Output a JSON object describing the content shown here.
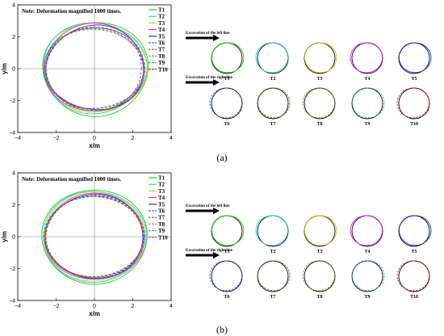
{
  "panels": [
    {
      "caption": "(a)",
      "left_chart": {
        "note": "Note: Deformation magnified 1000 times.",
        "xlabel": "x/m",
        "ylabel": "y/m",
        "xticks": [
          "−4",
          "−2",
          "0",
          "2",
          "4"
        ],
        "yticks": [
          "4",
          "2",
          "0",
          "−2",
          "−4"
        ]
      },
      "right": {
        "left_line_label": "Excavation of the left line",
        "right_line_label": "Excavation of the right line"
      }
    },
    {
      "caption": "(b)",
      "left_chart": {
        "note": "Note: Deformation magnified 1000 times.",
        "xlabel": "x/m",
        "ylabel": "y/m",
        "xticks": [
          "−4",
          "−2",
          "0",
          "2",
          "4"
        ],
        "yticks": [
          "4",
          "2",
          "0",
          "−2",
          "−4"
        ]
      },
      "right": {
        "left_line_label": "Excavation of the left line",
        "right_line_label": "Excavation of the right line"
      }
    }
  ],
  "chart_data": [
    {
      "type": "line",
      "xlabel": "x/m",
      "ylabel": "y/m",
      "xlim": [
        -4,
        4
      ],
      "ylim": [
        -4,
        4
      ],
      "note": "Note: Deformation magnified 1000 times.",
      "legend_position": "top-right",
      "series": [
        {
          "name": "T1",
          "color": "#22cc22",
          "dash": "solid",
          "rx": 2.75,
          "ry": 2.95,
          "cx": 0.05,
          "cy": 0.0
        },
        {
          "name": "T2",
          "color": "#33cccc",
          "dash": "solid",
          "rx": 2.7,
          "ry": 2.85,
          "cx": 0.0,
          "cy": 0.05
        },
        {
          "name": "T3",
          "color": "#cccc22",
          "dash": "solid",
          "rx": 2.65,
          "ry": 2.8,
          "cx": 0.05,
          "cy": 0.05
        },
        {
          "name": "T4",
          "color": "#cc33cc",
          "dash": "solid",
          "rx": 2.6,
          "ry": 2.75,
          "cx": 0.0,
          "cy": 0.05
        },
        {
          "name": "T5",
          "color": "#2233cc",
          "dash": "solid",
          "rx": 2.55,
          "ry": 2.65,
          "cx": 0.05,
          "cy": 0.05
        },
        {
          "name": "T6",
          "color": "#3355cc",
          "dash": "dashed",
          "rx": 2.55,
          "ry": 2.6,
          "cx": -0.05,
          "cy": 0.0
        },
        {
          "name": "T7",
          "color": "#556633",
          "dash": "dashed",
          "rx": 2.6,
          "ry": 2.6,
          "cx": 0.0,
          "cy": 0.0
        },
        {
          "name": "T8",
          "color": "#888833",
          "dash": "dashed",
          "rx": 2.55,
          "ry": 2.55,
          "cx": 0.0,
          "cy": -0.05
        },
        {
          "name": "T9",
          "color": "#3399dd",
          "dash": "dashed",
          "rx": 2.6,
          "ry": 2.5,
          "cx": 0.0,
          "cy": 0.0
        },
        {
          "name": "T10",
          "color": "#dd2222",
          "dash": "dashed",
          "rx": 2.55,
          "ry": 2.55,
          "cx": 0.0,
          "cy": 0.0
        }
      ]
    },
    {
      "type": "line",
      "xlabel": "x/m",
      "ylabel": "y/m",
      "xlim": [
        -4,
        4
      ],
      "ylim": [
        -4,
        4
      ],
      "note": "Note: Deformation magnified 1000 times.",
      "legend_position": "top-right",
      "series": [
        {
          "name": "T1",
          "color": "#22cc22",
          "dash": "solid",
          "rx": 2.75,
          "ry": 2.95,
          "cx": 0.0,
          "cy": 0.0
        },
        {
          "name": "T2",
          "color": "#33cccc",
          "dash": "solid",
          "rx": 2.7,
          "ry": 2.85,
          "cx": 0.0,
          "cy": 0.0
        },
        {
          "name": "T3",
          "color": "#cccc22",
          "dash": "solid",
          "rx": 2.65,
          "ry": 2.8,
          "cx": 0.0,
          "cy": 0.0
        },
        {
          "name": "T4",
          "color": "#cc33cc",
          "dash": "solid",
          "rx": 2.6,
          "ry": 2.7,
          "cx": 0.0,
          "cy": 0.0
        },
        {
          "name": "T5",
          "color": "#2233cc",
          "dash": "solid",
          "rx": 2.55,
          "ry": 2.65,
          "cx": 0.0,
          "cy": 0.0
        },
        {
          "name": "T6",
          "color": "#3355cc",
          "dash": "dashed",
          "rx": 2.55,
          "ry": 2.6,
          "cx": 0.0,
          "cy": 0.0
        },
        {
          "name": "T7",
          "color": "#556633",
          "dash": "dashed",
          "rx": 2.6,
          "ry": 2.55,
          "cx": 0.0,
          "cy": 0.0
        },
        {
          "name": "T8",
          "color": "#888833",
          "dash": "dashed",
          "rx": 2.55,
          "ry": 2.55,
          "cx": 0.0,
          "cy": 0.0
        },
        {
          "name": "T9",
          "color": "#3399dd",
          "dash": "dashed",
          "rx": 2.6,
          "ry": 2.5,
          "cx": 0.0,
          "cy": 0.0
        },
        {
          "name": "T10",
          "color": "#dd2222",
          "dash": "dashed",
          "rx": 2.55,
          "ry": 2.55,
          "cx": 0.0,
          "cy": 0.0
        }
      ]
    }
  ],
  "thumbnails": [
    {
      "label": "T1",
      "color": "#22cc22",
      "dash": "solid"
    },
    {
      "label": "T2",
      "color": "#33cccc",
      "dash": "solid"
    },
    {
      "label": "T3",
      "color": "#cccc22",
      "dash": "solid"
    },
    {
      "label": "T4",
      "color": "#cc33cc",
      "dash": "solid"
    },
    {
      "label": "T5",
      "color": "#2233cc",
      "dash": "solid"
    },
    {
      "label": "T6",
      "color": "#3355cc",
      "dash": "dashed"
    },
    {
      "label": "T7",
      "color": "#556633",
      "dash": "dashed"
    },
    {
      "label": "T8",
      "color": "#888833",
      "dash": "dashed"
    },
    {
      "label": "T9",
      "color": "#3399dd",
      "dash": "dashed"
    },
    {
      "label": "T10",
      "color": "#dd2222",
      "dash": "dashed"
    }
  ]
}
